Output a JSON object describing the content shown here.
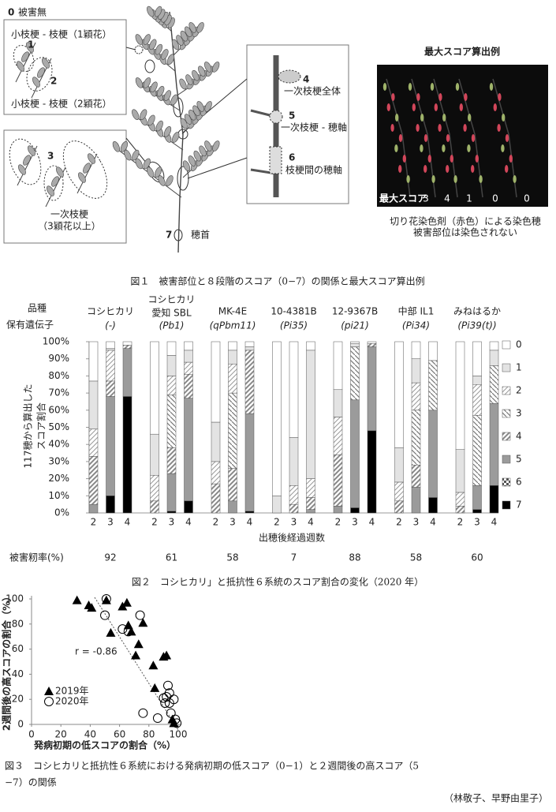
{
  "figure1": {
    "score0": "0",
    "score0_label": "被害無",
    "box1_top": "小枝梗 - 枝梗（1穎花）",
    "mark1": "1",
    "mark2": "2",
    "box1_bottom": "小枝梗 - 枝梗（2穎花）",
    "mark3": "3",
    "box2_label": [
      "一次枝梗",
      "（3穎花以上）"
    ],
    "mark4": "4",
    "label4": "一次枝梗全体",
    "mark5": "5",
    "label5": "一次枝梗 - 穂軸",
    "mark6": "6",
    "label6": "枝梗間の穂軸",
    "mark7": "7",
    "label7": "穂首",
    "photo_title": "最大スコア算出例",
    "photo_score_label": "最大スコア",
    "photo_scores": [
      3,
      4,
      1,
      0,
      0
    ],
    "photo_caption": [
      "切り花染色剤（赤色）による染色穂",
      "被害部位は染色されない"
    ],
    "caption": "図１　被害部位と８段階のスコア（0−7）の関係と最大スコア算出例"
  },
  "chart_data": [
    {
      "type": "stacked_bar",
      "row_labels": {
        "variety": "品種",
        "gene": "保有遺伝子",
        "damage": "被害籾率(%)"
      },
      "groups": [
        {
          "name": [
            "コシヒカリ"
          ],
          "gene": "(-)",
          "damage_rate": 92
        },
        {
          "name": [
            "コシヒカリ",
            "愛知 SBL"
          ],
          "gene": "(Pb1)",
          "damage_rate": 61
        },
        {
          "name": [
            "MK-4E"
          ],
          "gene": "(qPbm11)",
          "damage_rate": 58
        },
        {
          "name": [
            "10-4381B"
          ],
          "gene": "(Pi35)",
          "damage_rate": 7
        },
        {
          "name": [
            "12-9367B"
          ],
          "gene": "(pi21)",
          "damage_rate": 88
        },
        {
          "name": [
            "中部 IL1"
          ],
          "gene": "(Pi34)",
          "damage_rate": 58
        },
        {
          "name": [
            "みねはるか"
          ],
          "gene": "(Pi39(t))",
          "damage_rate": 60
        }
      ],
      "categories": [
        2,
        3,
        4,
        2,
        3,
        4,
        2,
        3,
        4,
        2,
        3,
        4,
        2,
        3,
        4,
        2,
        3,
        4,
        2,
        3,
        4
      ],
      "series": [
        {
          "name": "0",
          "color": "#ffffff",
          "values": [
            23,
            4,
            2,
            54,
            8,
            5,
            47,
            5,
            3,
            90,
            56,
            5,
            28,
            1,
            1,
            62,
            10,
            11,
            63,
            20,
            5
          ]
        },
        {
          "name": "1",
          "color": "#e3e3e3",
          "values": [
            28,
            1,
            0,
            24,
            12,
            7,
            23,
            8,
            2,
            10,
            28,
            75,
            16,
            2,
            0,
            20,
            14,
            0,
            25,
            5,
            9
          ]
        },
        {
          "name": "2",
          "color": "#9a9a9a",
          "pattern": "hatch-sparse",
          "values": [
            16,
            18,
            0,
            15,
            11,
            7,
            13,
            17,
            0,
            0,
            11,
            11,
            22,
            0,
            0,
            11,
            16,
            0,
            8,
            18,
            0
          ]
        },
        {
          "name": "3",
          "color": "#777777",
          "pattern": "hatch-back",
          "values": [
            0,
            0,
            0,
            0,
            31,
            0,
            0,
            44,
            0,
            0,
            0,
            0,
            0,
            31,
            0,
            0,
            32,
            29,
            0,
            41,
            22
          ]
        },
        {
          "name": "4",
          "color": "#888888",
          "pattern": "hatch-dense",
          "values": [
            28,
            9,
            2,
            7,
            15,
            14,
            17,
            19,
            37,
            0,
            5,
            7,
            30,
            0,
            2,
            7,
            13,
            0,
            4,
            0,
            0
          ]
        },
        {
          "name": "5",
          "color": "#9b9b9b",
          "values": [
            5,
            58,
            28,
            0,
            22,
            60,
            0,
            7,
            57,
            0,
            0,
            2,
            4,
            63,
            49,
            0,
            15,
            51,
            0,
            14,
            48
          ]
        },
        {
          "name": "6",
          "color": "#555555",
          "pattern": "checker",
          "values": [
            0,
            0,
            0,
            0,
            0,
            0,
            0,
            0,
            0,
            0,
            0,
            0,
            0,
            0,
            0,
            0,
            0,
            0,
            0,
            0,
            0
          ]
        },
        {
          "name": "7",
          "color": "#000000",
          "values": [
            0,
            10,
            68,
            0,
            1,
            7,
            0,
            0,
            1,
            0,
            0,
            0,
            0,
            3,
            48,
            0,
            0,
            9,
            0,
            2,
            16
          ]
        }
      ],
      "ylim": [
        0,
        100
      ],
      "yticks": [
        {
          "value": 0,
          "label": "0%"
        },
        {
          "value": 10,
          "label": "10%"
        },
        {
          "value": 20,
          "label": "20%"
        },
        {
          "value": 30,
          "label": "30%"
        },
        {
          "value": 40,
          "label": "40%"
        },
        {
          "value": 50,
          "label": "50%"
        },
        {
          "value": 60,
          "label": "60%"
        },
        {
          "value": 70,
          "label": "70%"
        },
        {
          "value": 80,
          "label": "80%"
        },
        {
          "value": 90,
          "label": "90%"
        },
        {
          "value": 100,
          "label": "100%"
        }
      ],
      "ylabel": [
        "117穂から算出した",
        "スコア割合"
      ],
      "xlabel": "出穂後経過週数",
      "caption": "図２　コシヒカリ」と抵抗性６系統のスコア割合の変化（2020 年）"
    },
    {
      "type": "scatter",
      "xlim": [
        0,
        100
      ],
      "ylim": [
        0,
        100
      ],
      "xticks": [
        0,
        20,
        40,
        60,
        80,
        100
      ],
      "yticks": [
        0,
        20,
        40,
        60,
        80,
        100
      ],
      "xlabel": "発病初期の低スコアの割合（%）",
      "ylabel": "2週間後の高スコアの割合（%）",
      "annotation": "r = -0.86",
      "series": [
        {
          "name": "2019年",
          "marker": "triangle",
          "color": "#000000",
          "x": [
            31,
            39,
            41,
            51,
            54,
            62,
            65,
            66,
            68,
            73,
            76,
            71,
            83,
            90,
            92,
            84,
            96,
            97
          ],
          "y": [
            99,
            95,
            93,
            99,
            73,
            94,
            97,
            79,
            74,
            64,
            81,
            55,
            47,
            54,
            55,
            29,
            4,
            1
          ]
        },
        {
          "name": "2020年",
          "marker": "circle",
          "color": "#000000",
          "x": [
            51,
            50,
            62,
            74,
            66,
            76,
            86,
            90,
            91,
            92,
            93,
            94,
            94,
            95,
            97,
            98,
            99
          ],
          "y": [
            100,
            87,
            76,
            87,
            74,
            9,
            5,
            21,
            17,
            22,
            31,
            25,
            17,
            9,
            20,
            4,
            1
          ]
        }
      ],
      "caption": [
        "図３　コシヒカリと抵抗性６系統における発病初期の低スコア（0−1）と２週間後の高スコア（5",
        "−7）の関係"
      ]
    }
  ],
  "author": "（林敬子、早野由里子）"
}
